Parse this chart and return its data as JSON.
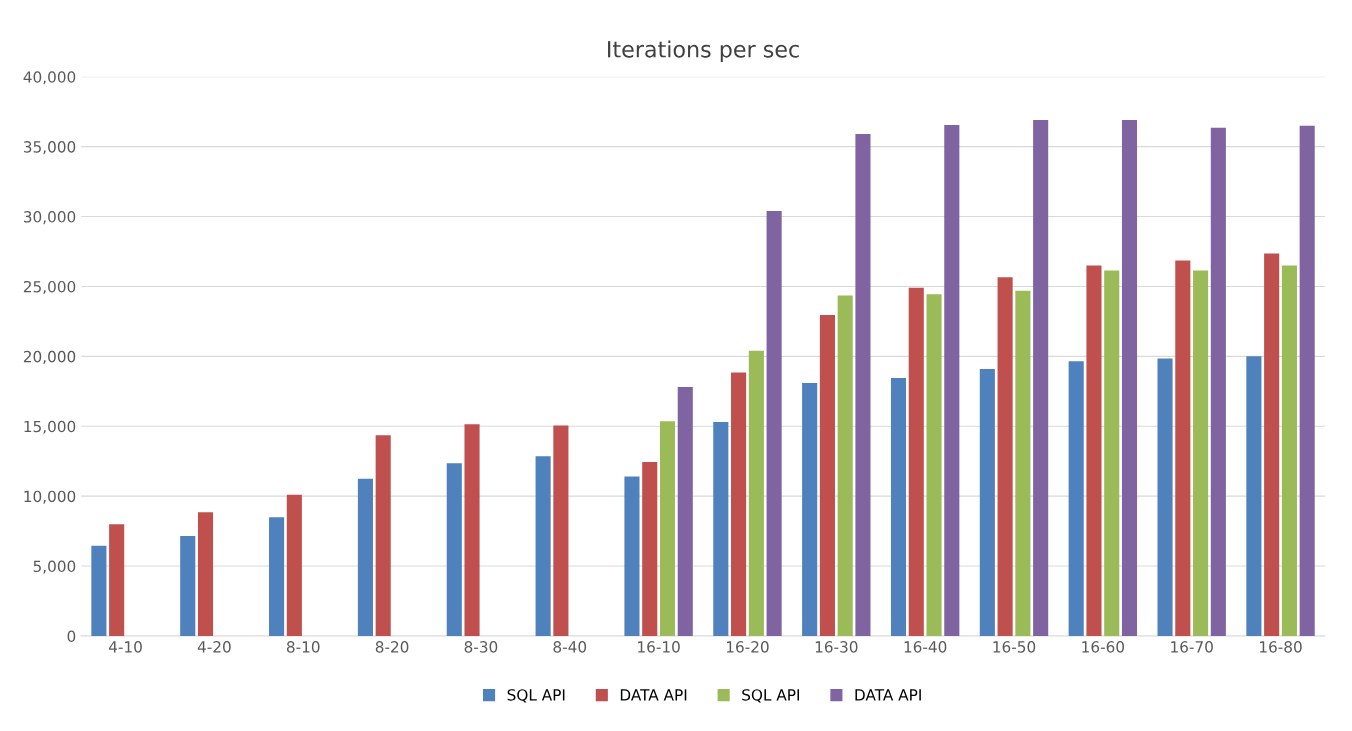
{
  "chart_data": {
    "type": "bar",
    "title": "Iterations per sec",
    "categories": [
      "4-10",
      "4-20",
      "8-10",
      "8-20",
      "8-30",
      "8-40",
      "16-10",
      "16-20",
      "16-30",
      "16-40",
      "16-50",
      "16-60",
      "16-70",
      "16-80"
    ],
    "series": [
      {
        "name": "SQL API",
        "color": "#4f81bd",
        "values": [
          6450,
          7150,
          8500,
          11250,
          12350,
          12850,
          11400,
          15300,
          18100,
          18450,
          19100,
          19650,
          19850,
          20000
        ]
      },
      {
        "name": "DATA API",
        "color": "#c0504d",
        "values": [
          8000,
          8850,
          10100,
          14350,
          15150,
          15050,
          12450,
          18850,
          22950,
          24900,
          25650,
          26500,
          26850,
          27350
        ]
      },
      {
        "name": "SQL API",
        "color": "#9bbb59",
        "values": [
          null,
          null,
          null,
          null,
          null,
          null,
          15350,
          20400,
          24350,
          24450,
          24700,
          26150,
          26150,
          26500
        ]
      },
      {
        "name": "DATA API",
        "color": "#8064a2",
        "values": [
          null,
          null,
          null,
          null,
          null,
          null,
          17800,
          30400,
          35900,
          36550,
          36900,
          36900,
          36350,
          36500
        ]
      }
    ],
    "ylim": [
      0,
      40000
    ],
    "yticks": [
      {
        "value": 0,
        "label": "0"
      },
      {
        "value": 5000,
        "label": "5,000"
      },
      {
        "value": 10000,
        "label": "10,000"
      },
      {
        "value": 15000,
        "label": "15,000"
      },
      {
        "value": 20000,
        "label": "20,000"
      },
      {
        "value": 25000,
        "label": "25,000"
      },
      {
        "value": 30000,
        "label": "30,000"
      },
      {
        "value": 35000,
        "label": "35,000"
      },
      {
        "value": 40000,
        "label": "40,000"
      }
    ],
    "grid": "y",
    "legend": "bottom"
  }
}
